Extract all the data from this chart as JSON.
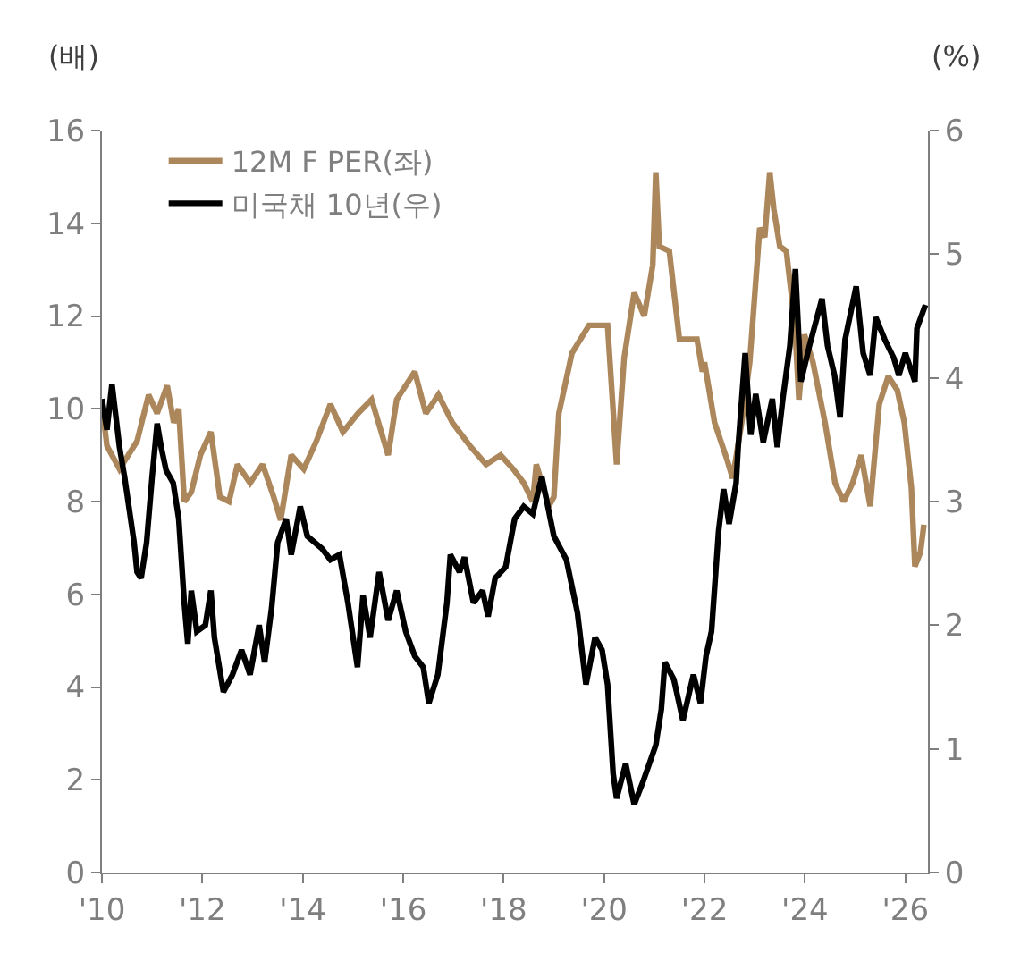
{
  "chart_data": {
    "type": "line",
    "ylabel": "(배)",
    "y2label": "(%)",
    "xlim": [
      2010,
      2026.45
    ],
    "xticks": [
      {
        "value": 2010,
        "label": "'10"
      },
      {
        "value": 2012,
        "label": "'12"
      },
      {
        "value": 2014,
        "label": "'14"
      },
      {
        "value": 2016,
        "label": "'16"
      },
      {
        "value": 2018,
        "label": "'18"
      },
      {
        "value": 2020,
        "label": "'20"
      },
      {
        "value": 2022,
        "label": "'22"
      },
      {
        "value": 2024,
        "label": "'24"
      },
      {
        "value": 2026,
        "label": "'26"
      }
    ],
    "ylim": [
      0,
      16
    ],
    "yticks": [
      0,
      2,
      4,
      6,
      8,
      10,
      12,
      14,
      16
    ],
    "y2lim": [
      0,
      6
    ],
    "y2ticks": [
      0,
      1,
      2,
      3,
      4,
      5,
      6
    ],
    "legend": "top left",
    "line_style": "solid",
    "marker": "none",
    "series": [
      {
        "name": "12M F PER(좌)",
        "color": "#ad875c",
        "x": [
          2010.0,
          2010.1,
          2010.35,
          2010.7,
          2010.93,
          2011.1,
          2011.3,
          2011.43,
          2011.53,
          2011.64,
          2011.78,
          2011.96,
          2012.17,
          2012.35,
          2012.53,
          2012.7,
          2012.95,
          2013.2,
          2013.42,
          2013.56,
          2013.77,
          2014.02,
          2014.27,
          2014.55,
          2014.8,
          2015.1,
          2015.37,
          2015.7,
          2015.87,
          2016.23,
          2016.45,
          2016.7,
          2016.98,
          2017.33,
          2017.65,
          2017.94,
          2018.19,
          2018.4,
          2018.58,
          2018.65,
          2018.9,
          2019.0,
          2019.1,
          2019.36,
          2019.7,
          2020.07,
          2020.25,
          2020.4,
          2020.6,
          2020.8,
          2020.97,
          2021.03,
          2021.1,
          2021.3,
          2021.5,
          2021.85,
          2021.96,
          2022.0,
          2022.2,
          2022.45,
          2022.56,
          2022.74,
          2022.9,
          2023.1,
          2023.2,
          2023.3,
          2023.38,
          2023.5,
          2023.63,
          2023.8,
          2023.88,
          2023.99,
          2024.16,
          2024.4,
          2024.6,
          2024.77,
          2024.95,
          2025.12,
          2025.3,
          2025.48,
          2025.66,
          2025.84,
          2025.98,
          2026.12,
          2026.19,
          2026.3,
          2026.37
        ],
        "values": [
          10.1,
          9.2,
          8.7,
          9.3,
          10.3,
          9.9,
          10.5,
          9.7,
          10.0,
          8.0,
          8.2,
          9.0,
          9.5,
          8.1,
          8.0,
          8.8,
          8.4,
          8.8,
          8.1,
          7.6,
          9.0,
          8.7,
          9.3,
          10.1,
          9.5,
          9.9,
          10.2,
          9.0,
          10.2,
          10.8,
          9.9,
          10.3,
          9.7,
          9.2,
          8.8,
          9.0,
          8.7,
          8.4,
          8.0,
          8.8,
          7.9,
          8.1,
          9.9,
          11.2,
          11.8,
          11.8,
          8.8,
          11.1,
          12.5,
          12.0,
          13.1,
          15.1,
          13.5,
          13.4,
          11.5,
          11.5,
          10.8,
          11.0,
          9.7,
          8.9,
          8.5,
          9.7,
          11.0,
          13.9,
          13.7,
          15.1,
          14.3,
          13.5,
          13.4,
          11.8,
          10.2,
          11.6,
          11.0,
          9.7,
          8.4,
          8.0,
          8.4,
          9.0,
          7.9,
          10.1,
          10.7,
          10.4,
          9.7,
          8.3,
          6.6,
          6.9,
          7.5
        ]
      },
      {
        "name": "미국채 10년(우)",
        "color": "#000000",
        "axis": "y2",
        "x": [
          2010.0,
          2010.1,
          2010.2,
          2010.35,
          2010.45,
          2010.64,
          2010.7,
          2010.78,
          2010.89,
          2011.0,
          2011.1,
          2011.18,
          2011.28,
          2011.42,
          2011.53,
          2011.64,
          2011.71,
          2011.78,
          2011.89,
          2012.06,
          2012.17,
          2012.24,
          2012.42,
          2012.6,
          2012.78,
          2012.95,
          2013.13,
          2013.24,
          2013.38,
          2013.5,
          2013.67,
          2013.77,
          2013.95,
          2014.09,
          2014.38,
          2014.55,
          2014.73,
          2014.9,
          2015.09,
          2015.2,
          2015.34,
          2015.52,
          2015.7,
          2015.87,
          2016.05,
          2016.23,
          2016.4,
          2016.51,
          2016.69,
          2016.87,
          2016.94,
          2017.12,
          2017.22,
          2017.4,
          2017.58,
          2017.69,
          2017.83,
          2018.04,
          2018.22,
          2018.4,
          2018.58,
          2018.76,
          2019.0,
          2019.25,
          2019.47,
          2019.64,
          2019.82,
          2019.96,
          2020.07,
          2020.18,
          2020.25,
          2020.43,
          2020.6,
          2020.78,
          2021.03,
          2021.14,
          2021.21,
          2021.39,
          2021.57,
          2021.78,
          2021.92,
          2022.03,
          2022.14,
          2022.28,
          2022.38,
          2022.49,
          2022.63,
          2022.67,
          2022.81,
          2022.92,
          2023.02,
          2023.17,
          2023.35,
          2023.45,
          2023.56,
          2023.7,
          2023.81,
          2023.92,
          2024.09,
          2024.34,
          2024.45,
          2024.59,
          2024.7,
          2024.8,
          2025.02,
          2025.16,
          2025.3,
          2025.41,
          2025.59,
          2025.77,
          2025.87,
          2026.0,
          2026.19,
          2026.23,
          2026.4
        ],
        "values": [
          3.83,
          3.58,
          3.95,
          3.44,
          3.2,
          2.67,
          2.43,
          2.38,
          2.67,
          3.2,
          3.63,
          3.44,
          3.25,
          3.15,
          2.86,
          2.18,
          1.85,
          2.28,
          1.95,
          2.0,
          2.28,
          1.9,
          1.46,
          1.6,
          1.8,
          1.6,
          2.0,
          1.7,
          2.14,
          2.67,
          2.86,
          2.57,
          2.96,
          2.72,
          2.62,
          2.53,
          2.57,
          2.18,
          1.66,
          2.24,
          1.9,
          2.43,
          2.04,
          2.28,
          1.95,
          1.75,
          1.66,
          1.37,
          1.6,
          2.18,
          2.57,
          2.43,
          2.55,
          2.18,
          2.28,
          2.07,
          2.38,
          2.47,
          2.86,
          2.96,
          2.9,
          3.2,
          2.72,
          2.53,
          2.1,
          1.52,
          1.9,
          1.8,
          1.52,
          0.8,
          0.6,
          0.88,
          0.55,
          0.74,
          1.03,
          1.32,
          1.7,
          1.56,
          1.23,
          1.6,
          1.37,
          1.75,
          1.95,
          2.76,
          3.1,
          2.82,
          3.15,
          3.44,
          4.2,
          3.54,
          3.87,
          3.48,
          3.83,
          3.44,
          3.83,
          4.26,
          4.88,
          3.97,
          4.26,
          4.64,
          4.26,
          4.02,
          3.68,
          4.31,
          4.74,
          4.2,
          4.02,
          4.49,
          4.31,
          4.16,
          4.02,
          4.2,
          3.97,
          4.4,
          4.59
        ]
      }
    ]
  }
}
